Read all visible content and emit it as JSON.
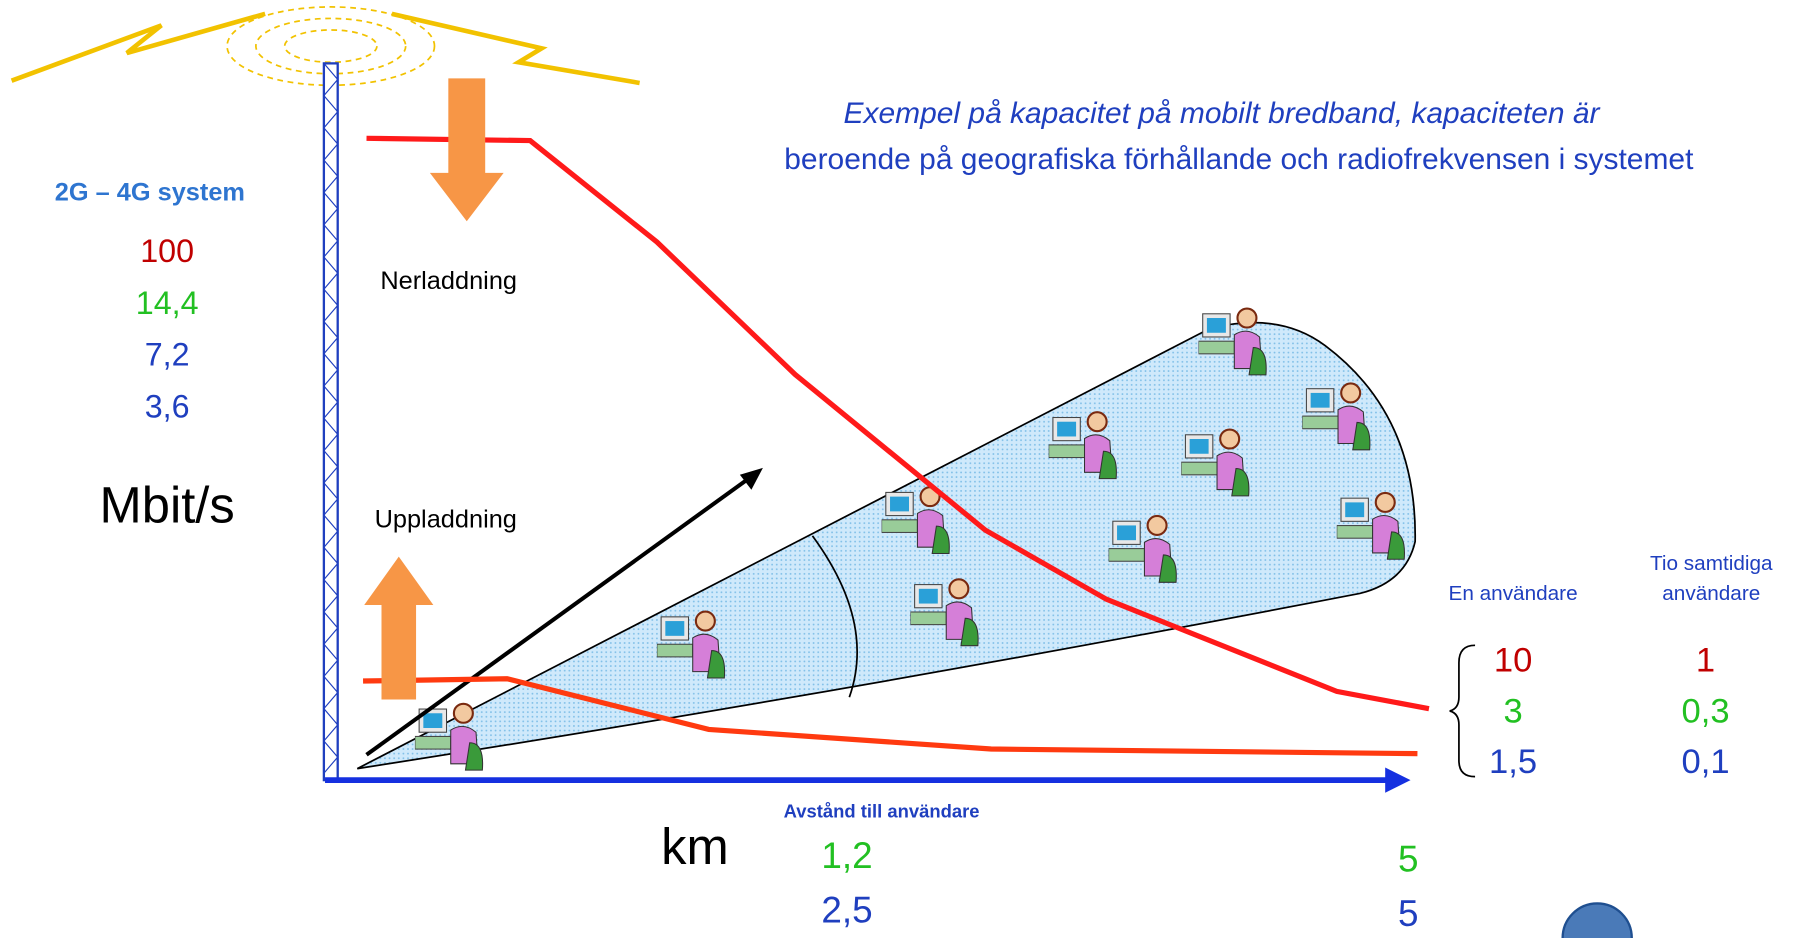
{
  "title": {
    "line1": "Exempel på kapacitet på mobilt bredband, kapaciteten är",
    "line2": "beroende på geografiska förhållande och radiofrekvensen i systemet"
  },
  "system_label": "2G – 4G system",
  "speeds": [
    "100",
    "14,4",
    "7,2",
    "3,6"
  ],
  "unit": "Mbit/s",
  "download_label": "Nerladdning",
  "upload_label": "Uppladdning",
  "distance": {
    "label": "Avstånd till användare",
    "unit": "km",
    "near": [
      "1,2",
      "2,5"
    ],
    "far": [
      "5",
      "5"
    ]
  },
  "columns": {
    "single": {
      "header": [
        "En användare"
      ],
      "values": [
        "10",
        "3",
        "1,5"
      ]
    },
    "ten": {
      "header": [
        "Tio samtidiga",
        "användare"
      ],
      "values": [
        "1",
        "0,3",
        "0,1"
      ]
    }
  }
}
